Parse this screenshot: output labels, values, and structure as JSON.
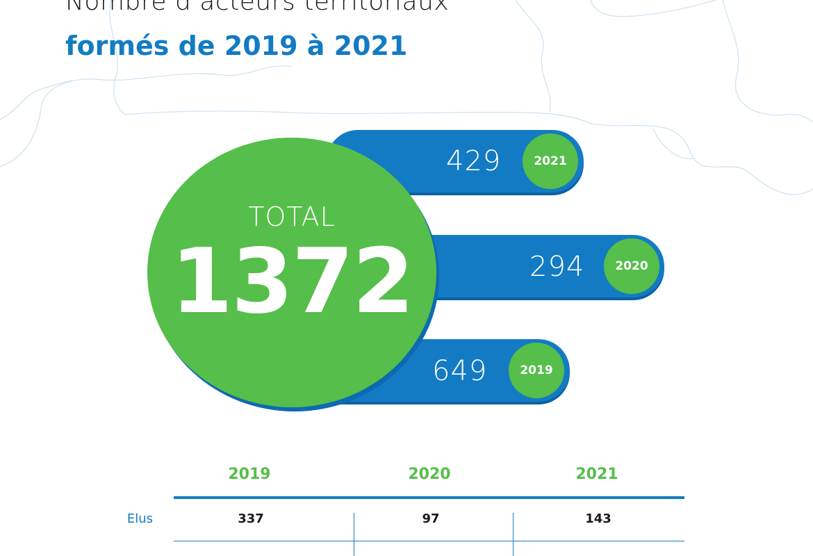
{
  "title": {
    "line1": "Nombre d’acteurs territoriaux",
    "line2": "formés de 2019 à 2021"
  },
  "total": {
    "label": "TOTAL",
    "value": "1372"
  },
  "chart_data": {
    "type": "bar",
    "categories": [
      "2021",
      "2020",
      "2019"
    ],
    "values": [
      429,
      294,
      649
    ],
    "total": 1372
  },
  "pills": [
    {
      "year": "2021",
      "value": "429"
    },
    {
      "year": "2020",
      "value": "294"
    },
    {
      "year": "2019",
      "value": "649"
    }
  ],
  "table": {
    "headers": [
      "2019",
      "2020",
      "2021"
    ],
    "rows": [
      {
        "label": "Elus",
        "values": [
          "337",
          "97",
          "143"
        ]
      }
    ]
  },
  "colors": {
    "blue": "#137bc3",
    "green": "#56be4a",
    "map_lines": "#cfe3f2"
  }
}
